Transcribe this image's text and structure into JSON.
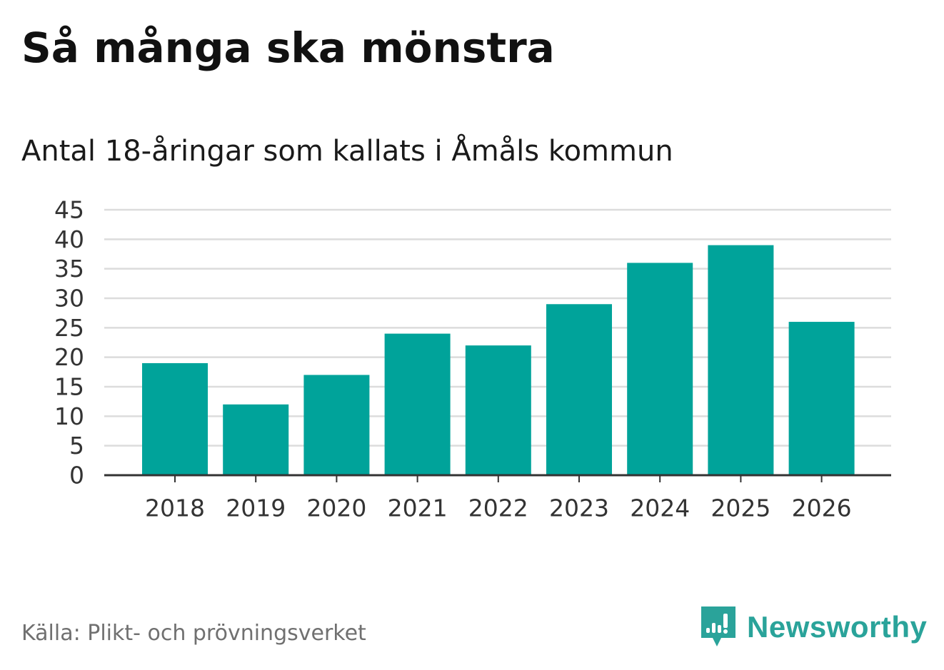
{
  "chart_data": {
    "type": "bar",
    "title": "Så många ska mönstra",
    "subtitle": "Antal 18-åringar som kallats i Åmåls kommun",
    "categories": [
      "2018",
      "2019",
      "2020",
      "2021",
      "2022",
      "2023",
      "2024",
      "2025",
      "2026"
    ],
    "values": [
      19,
      12,
      17,
      24,
      22,
      29,
      36,
      39,
      26
    ],
    "xlabel": "",
    "ylabel": "",
    "ylim": [
      0,
      45
    ],
    "yticks": [
      "0",
      "5",
      "10",
      "15",
      "20",
      "25",
      "30",
      "35",
      "40",
      "45"
    ],
    "grid": true,
    "bar_color": "#00a39a"
  },
  "source": "Källa: Plikt- och prövningsverket",
  "brand": {
    "name": "Newsworthy",
    "icon": "newsworthy-logo-icon",
    "color": "#2aa39a"
  }
}
